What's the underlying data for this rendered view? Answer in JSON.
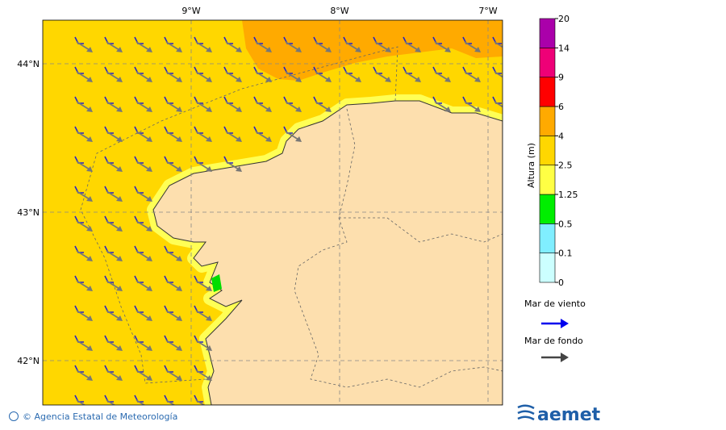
{
  "map": {
    "lon_labels": [
      "9°W",
      "8°W",
      "7°W"
    ],
    "lat_labels": [
      "44°N",
      "43°N",
      "42°N"
    ],
    "colorbar": {
      "title": "Altura (m)",
      "labels": [
        "0",
        "0.1",
        "0.5",
        "1.25",
        "2.5",
        "4",
        "6",
        "9",
        "14",
        "20"
      ],
      "colors": [
        "#ccffff",
        "#80eeff",
        "#00ee00",
        "#ffff44",
        "#ffd700",
        "#ffaa00",
        "#ff0000",
        "#ee0077",
        "#aa00aa"
      ]
    },
    "legend": {
      "wind_sea": "Mar de viento",
      "swell": "Mar de fondo"
    },
    "footer": {
      "credit": "© Agencia Estatal de Meteorología",
      "logo": "aemet"
    }
  }
}
